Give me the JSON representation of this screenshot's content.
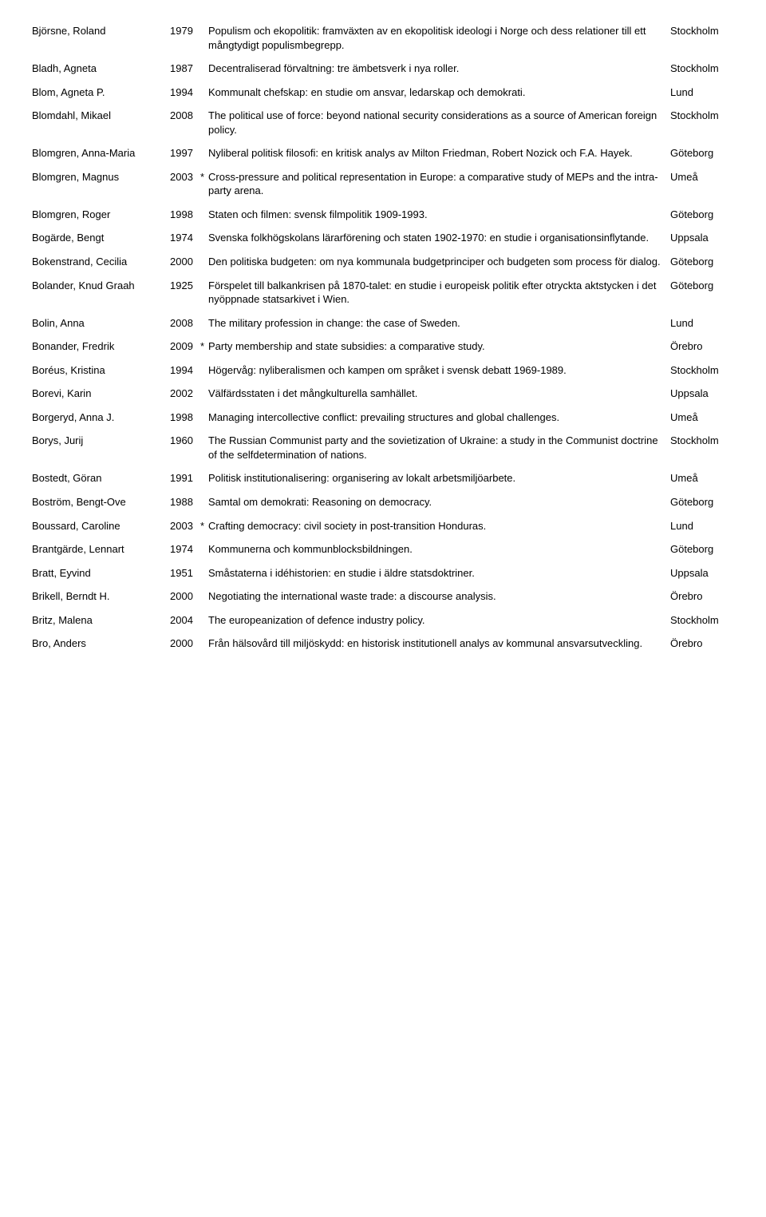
{
  "rows": [
    {
      "author": "Björsne, Roland",
      "year": "1979",
      "mark": "",
      "title": "Populism och ekopolitik: framväxten av en ekopolitisk ideologi i Norge och dess relationer till ett mångtydigt populismbegrepp.",
      "place": "Stockholm"
    },
    {
      "author": "Bladh, Agneta",
      "year": "1987",
      "mark": "",
      "title": "Decentraliserad förvaltning: tre ämbetsverk i nya roller.",
      "place": "Stockholm"
    },
    {
      "author": "Blom, Agneta P.",
      "year": "1994",
      "mark": "",
      "title": "Kommunalt chefskap: en studie om ansvar, ledarskap och demokrati.",
      "place": "Lund"
    },
    {
      "author": "Blomdahl, Mikael",
      "year": "2008",
      "mark": "",
      "title": "The political use of force: beyond national security considerations as a source of American foreign policy.",
      "place": "Stockholm"
    },
    {
      "author": "Blomgren, Anna-Maria",
      "year": "1997",
      "mark": "",
      "title": "Nyliberal politisk filosofi: en kritisk analys av Milton Friedman, Robert Nozick och F.A. Hayek.",
      "place": "Göteborg"
    },
    {
      "author": "Blomgren, Magnus",
      "year": "2003",
      "mark": "*",
      "title": "Cross-pressure and political representation in Europe: a comparative study of MEPs and the intra-party arena.",
      "place": "Umeå"
    },
    {
      "author": "Blomgren, Roger",
      "year": "1998",
      "mark": "",
      "title": "Staten och filmen: svensk filmpolitik 1909-1993.",
      "place": "Göteborg"
    },
    {
      "author": "Bogärde, Bengt",
      "year": "1974",
      "mark": "",
      "title": "Svenska folkhögskolans lärarförening och staten 1902-1970: en studie i organisationsinflytande.",
      "place": "Uppsala"
    },
    {
      "author": "Bokenstrand, Cecilia",
      "year": "2000",
      "mark": "",
      "title": "Den politiska budgeten: om nya kommunala budgetprinciper och budgeten som process för dialog.",
      "place": "Göteborg"
    },
    {
      "author": "Bolander, Knud Graah",
      "year": "1925",
      "mark": "",
      "title": "Förspelet till balkankrisen på 1870-talet: en studie i europeisk politik efter otryckta aktstycken i det nyöppnade statsarkivet i Wien.",
      "place": "Göteborg"
    },
    {
      "author": "Bolin, Anna",
      "year": "2008",
      "mark": "",
      "title": "The military profession in change: the case of Sweden.",
      "place": "Lund"
    },
    {
      "author": "Bonander, Fredrik",
      "year": "2009",
      "mark": "*",
      "title": "Party membership and state subsidies: a comparative study.",
      "place": "Örebro"
    },
    {
      "author": "Boréus, Kristina",
      "year": "1994",
      "mark": "",
      "title": "Högervåg: nyliberalismen och kampen om språket i svensk debatt 1969-1989.",
      "place": "Stockholm"
    },
    {
      "author": "Borevi, Karin",
      "year": "2002",
      "mark": "",
      "title": "Välfärdsstaten i det mångkulturella samhället.",
      "place": "Uppsala"
    },
    {
      "author": "Borgeryd, Anna J.",
      "year": "1998",
      "mark": "",
      "title": "Managing intercollective conflict: prevailing structures and global challenges.",
      "place": "Umeå"
    },
    {
      "author": "Borys, Jurij",
      "year": "1960",
      "mark": "",
      "title": "The Russian Communist party and the sovietization of Ukraine: a study in the Communist doctrine of the selfdetermination of nations.",
      "place": "Stockholm"
    },
    {
      "author": "Bostedt, Göran",
      "year": "1991",
      "mark": "",
      "title": "Politisk institutionalisering: organisering av lokalt arbetsmiljöarbete.",
      "place": "Umeå"
    },
    {
      "author": "Boström, Bengt-Ove",
      "year": "1988",
      "mark": "",
      "title": "Samtal om demokrati: Reasoning on democracy.",
      "place": "Göteborg"
    },
    {
      "author": "Boussard, Caroline",
      "year": "2003",
      "mark": "*",
      "title": "Crafting democracy: civil society in post-transition Honduras.",
      "place": "Lund"
    },
    {
      "author": "Brantgärde, Lennart",
      "year": "1974",
      "mark": "",
      "title": "Kommunerna och kommunblocksbildningen.",
      "place": "Göteborg"
    },
    {
      "author": "Bratt, Eyvind",
      "year": "1951",
      "mark": "",
      "title": "Småstaterna i idéhistorien: en studie i äldre statsdoktriner.",
      "place": "Uppsala"
    },
    {
      "author": "Brikell, Berndt H.",
      "year": "2000",
      "mark": "",
      "title": "Negotiating the international waste trade: a discourse analysis.",
      "place": "Örebro"
    },
    {
      "author": "Britz, Malena",
      "year": "2004",
      "mark": "",
      "title": "The europeanization of defence industry policy.",
      "place": "Stockholm"
    },
    {
      "author": "Bro, Anders",
      "year": "2000",
      "mark": "",
      "title": "Från hälsovård till miljöskydd: en historisk institutionell analys av kommunal ansvarsutveckling.",
      "place": "Örebro"
    }
  ]
}
